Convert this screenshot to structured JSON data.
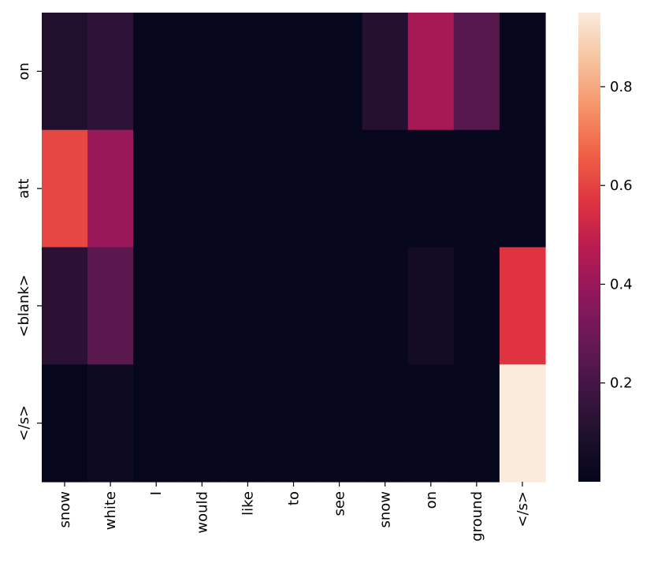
{
  "chart_data": {
    "type": "heatmap",
    "title": "",
    "xlabel": "",
    "ylabel": "",
    "x_labels": [
      "snow",
      "white",
      "I",
      "would",
      "like",
      "to",
      "see",
      "snow",
      "on",
      "ground",
      "</s>"
    ],
    "y_labels": [
      "on",
      "att",
      "<blank>",
      "</s>"
    ],
    "values": [
      [
        0.1,
        0.14,
        0.01,
        0.01,
        0.01,
        0.01,
        0.01,
        0.11,
        0.43,
        0.24,
        0.02
      ],
      [
        0.61,
        0.4,
        0.01,
        0.01,
        0.01,
        0.01,
        0.01,
        0.01,
        0.01,
        0.01,
        0.01
      ],
      [
        0.13,
        0.25,
        0.01,
        0.01,
        0.01,
        0.01,
        0.01,
        0.02,
        0.06,
        0.02,
        0.57
      ],
      [
        0.01,
        0.04,
        0.01,
        0.01,
        0.01,
        0.01,
        0.01,
        0.01,
        0.02,
        0.01,
        0.95
      ]
    ],
    "colorbar": {
      "min": 0.0,
      "max": 0.95,
      "ticks": [
        0.2,
        0.4,
        0.6,
        0.8
      ],
      "tick_labels": [
        "0.2",
        "0.4",
        "0.6",
        "0.8"
      ],
      "colormap": "rocket"
    }
  }
}
